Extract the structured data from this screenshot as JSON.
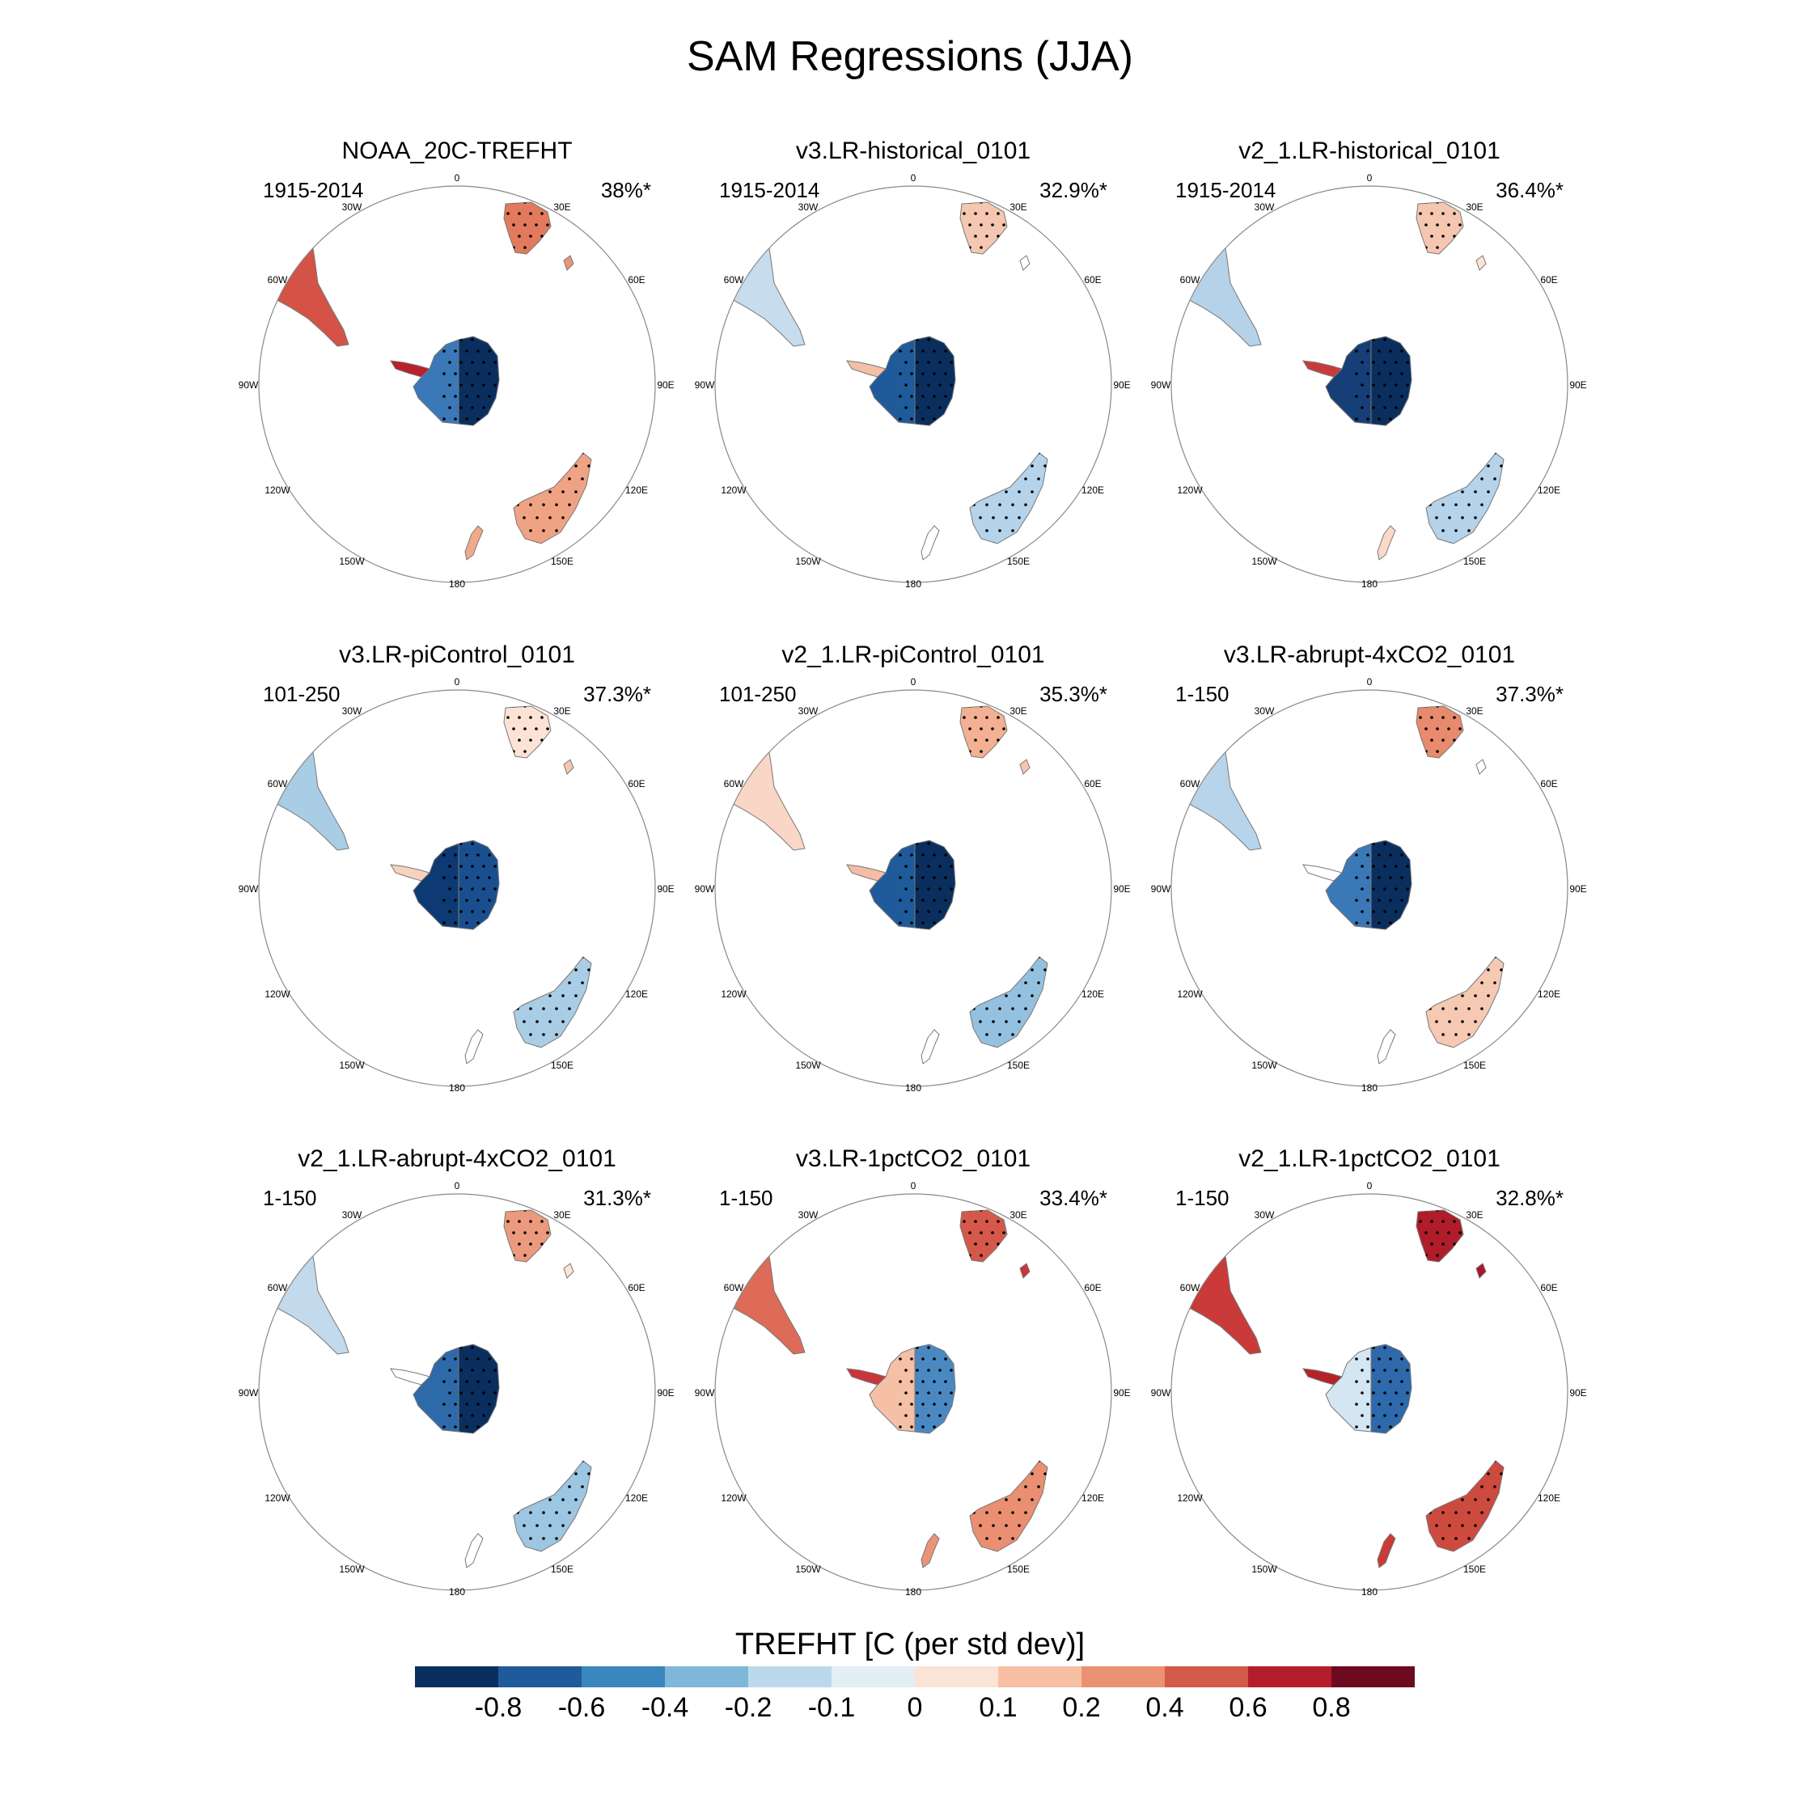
{
  "title": "SAM Regressions (JJA)",
  "lon_labels": [
    "0",
    "30E",
    "60E",
    "90E",
    "120E",
    "150E",
    "180",
    "150W",
    "120W",
    "90W",
    "60W",
    "30W"
  ],
  "panels": [
    {
      "title": "NOAA_20C-TREFHT",
      "period": "1915-2014",
      "pct": "38%*",
      "regions": {
        "ant_e": "#0a2f5f",
        "ant_w": "#3a78b8",
        "peninsula": "#b8222b",
        "africa": "#e27a5d",
        "madagascar": "#e8957a",
        "s_america": "#d45346",
        "australia": "#f0a384",
        "nz": "#f2a98a"
      }
    },
    {
      "title": "v3.LR-historical_0101",
      "period": "1915-2014",
      "pct": "32.9%*",
      "regions": {
        "ant_e": "#0a2f5f",
        "ant_w": "#1f5b9a",
        "peninsula": "#f3c0a7",
        "africa": "#f5c7b0",
        "madagascar": "#ffffff",
        "s_america": "#c7dcec",
        "australia": "#b5d3ea",
        "nz": "#ffffff"
      }
    },
    {
      "title": "v2_1.LR-historical_0101",
      "period": "1915-2014",
      "pct": "36.4%*",
      "regions": {
        "ant_e": "#0a2f5f",
        "ant_w": "#163f77",
        "peninsula": "#c83b3b",
        "africa": "#f5c7b0",
        "madagascar": "#fde3d6",
        "s_america": "#b6d2e8",
        "australia": "#b5d3ea",
        "nz": "#fbd9c8"
      }
    },
    {
      "title": "v3.LR-piControl_0101",
      "period": "101-250",
      "pct": "37.3%*",
      "regions": {
        "ant_e": "#1a4f8f",
        "ant_w": "#0d3a72",
        "peninsula": "#f7d2bf",
        "africa": "#fde3d6",
        "madagascar": "#f5c7b0",
        "s_america": "#a9cde5",
        "australia": "#a9cde5",
        "nz": "#ffffff"
      }
    },
    {
      "title": "v2_1.LR-piControl_0101",
      "period": "101-250",
      "pct": "35.3%*",
      "regions": {
        "ant_e": "#0a2f5f",
        "ant_w": "#1f5b9a",
        "peninsula": "#f5bda3",
        "africa": "#f3b092",
        "madagascar": "#f5c7b0",
        "s_america": "#f9d6c5",
        "australia": "#94c1e0",
        "nz": "#ffffff"
      }
    },
    {
      "title": "v3.LR-abrupt-4xCO2_0101",
      "period": "1-150",
      "pct": "37.3%*",
      "regions": {
        "ant_e": "#0a2f5f",
        "ant_w": "#3a78b8",
        "peninsula": "#ffffff",
        "africa": "#e78a6d",
        "madagascar": "#ffffff",
        "s_america": "#b7d4ea",
        "australia": "#f6c9b3",
        "nz": "#ffffff"
      }
    },
    {
      "title": "v2_1.LR-abrupt-4xCO2_0101",
      "period": "1-150",
      "pct": "31.3%*",
      "regions": {
        "ant_e": "#0a2f5f",
        "ant_w": "#2e6aaa",
        "peninsula": "#ffffff",
        "africa": "#eb9a7d",
        "madagascar": "#fde3d6",
        "s_america": "#c2daec",
        "australia": "#9cc6e2",
        "nz": "#ffffff"
      }
    },
    {
      "title": "v3.LR-1pctCO2_0101",
      "period": "1-150",
      "pct": "33.4%*",
      "regions": {
        "ant_e": "#4a88c2",
        "ant_w": "#f5c0a6",
        "peninsula": "#c9353a",
        "africa": "#d5584a",
        "madagascar": "#c9353a",
        "s_america": "#de6b57",
        "australia": "#ea8f72",
        "nz": "#ec9377"
      }
    },
    {
      "title": "v2_1.LR-1pctCO2_0101",
      "period": "1-150",
      "pct": "32.8%*",
      "regions": {
        "ant_e": "#2d69ab",
        "ant_w": "#d4e6f2",
        "peninsula": "#b5222a",
        "africa": "#b01c29",
        "madagascar": "#a8182a",
        "s_america": "#c93a38",
        "australia": "#cd4a3f",
        "nz": "#c93a38"
      }
    }
  ],
  "colorbar": {
    "title": "TREFHT [C (per std dev)]",
    "colors": [
      "#0a2f5f",
      "#1f5b9a",
      "#3a86bf",
      "#7fb7d9",
      "#bcd9ec",
      "#e4eef5",
      "#fbe3d6",
      "#f7c0a5",
      "#ea9173",
      "#d35a48",
      "#b41d2b",
      "#6d0a1f"
    ],
    "labels": [
      "-0.8",
      "-0.6",
      "-0.4",
      "-0.2",
      "-0.1",
      "0",
      "0.1",
      "0.2",
      "0.4",
      "0.6",
      "0.8"
    ]
  }
}
